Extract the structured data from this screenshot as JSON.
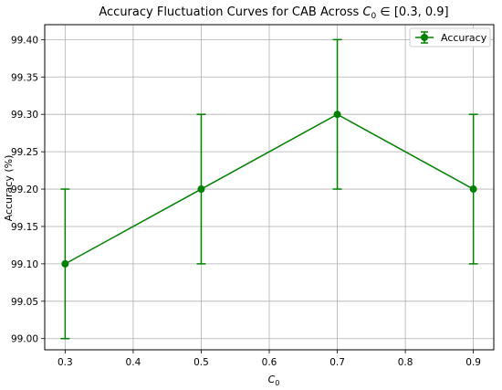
{
  "chart_data": {
    "type": "line",
    "title_prefix": "Accuracy Fluctuation Curves for CAB Across ",
    "title_var": "C",
    "title_sub": "0",
    "title_suffix": " ∈ [0.3, 0.9]",
    "xlabel_var": "C",
    "xlabel_sub": "0",
    "ylabel": "Accuracy (%)",
    "xlim": [
      0.27,
      0.93
    ],
    "ylim": [
      98.985,
      99.42
    ],
    "xticks": [
      0.3,
      0.4,
      0.5,
      0.6,
      0.7,
      0.8,
      0.9
    ],
    "xtick_labels": [
      "0.3",
      "0.4",
      "0.5",
      "0.6",
      "0.7",
      "0.8",
      "0.9"
    ],
    "yticks": [
      99.0,
      99.05,
      99.1,
      99.15,
      99.2,
      99.25,
      99.3,
      99.35,
      99.4
    ],
    "ytick_labels": [
      "99.00",
      "99.05",
      "99.10",
      "99.15",
      "99.20",
      "99.25",
      "99.30",
      "99.35",
      "99.40"
    ],
    "grid": true,
    "legend_position": "top-right",
    "series": [
      {
        "name": "Accuracy",
        "color": "#008000",
        "x": [
          0.3,
          0.5,
          0.7,
          0.9
        ],
        "y": [
          99.1,
          99.2,
          99.3,
          99.2
        ],
        "yerr": [
          0.1,
          0.1,
          0.1,
          0.1
        ]
      }
    ]
  }
}
